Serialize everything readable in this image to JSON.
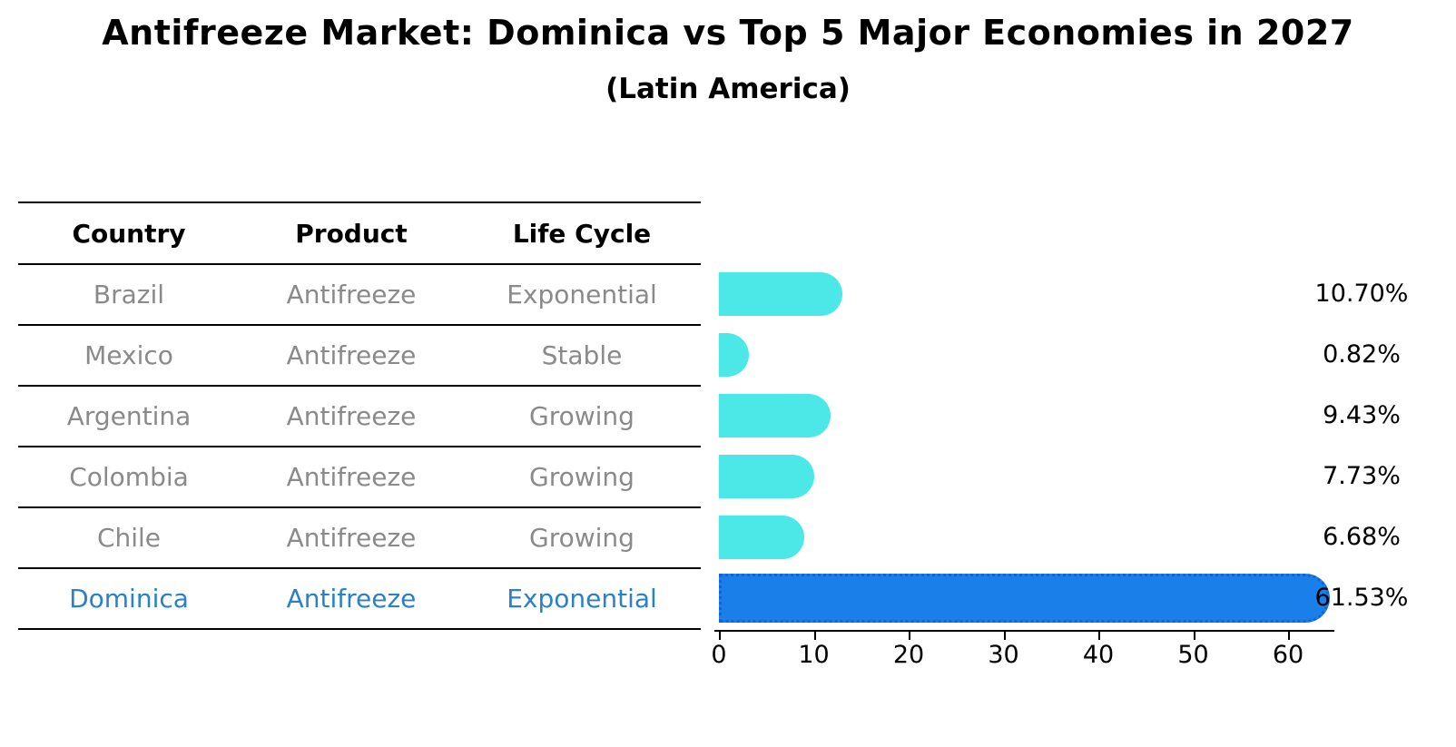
{
  "title": "Antifreeze Market: Dominica vs Top 5 Major Economies in 2027",
  "subtitle": "(Latin America)",
  "table": {
    "headers": [
      "Country",
      "Product",
      "Life Cycle"
    ],
    "rows": [
      {
        "country": "Brazil",
        "product": "Antifreeze",
        "life_cycle": "Exponential",
        "highlight": false
      },
      {
        "country": "Mexico",
        "product": "Antifreeze",
        "life_cycle": "Stable",
        "highlight": false
      },
      {
        "country": "Argentina",
        "product": "Antifreeze",
        "life_cycle": "Growing",
        "highlight": false
      },
      {
        "country": "Colombia",
        "product": "Antifreeze",
        "life_cycle": "Growing",
        "highlight": false
      },
      {
        "country": "Chile",
        "product": "Antifreeze",
        "life_cycle": "Growing",
        "highlight": false
      },
      {
        "country": "Dominica",
        "product": "Antifreeze",
        "life_cycle": "Exponential",
        "highlight": true
      }
    ]
  },
  "chart_data": {
    "type": "bar",
    "orientation": "horizontal",
    "title": "Antifreeze Market: Dominica vs Top 5 Major Economies in 2027",
    "subtitle": "(Latin America)",
    "categories": [
      "Brazil",
      "Mexico",
      "Argentina",
      "Colombia",
      "Chile",
      "Dominica"
    ],
    "values": [
      10.7,
      0.82,
      9.43,
      7.73,
      6.68,
      61.53
    ],
    "value_labels": [
      "10.70%",
      "0.82%",
      "9.43%",
      "7.73%",
      "6.68%",
      "61.53%"
    ],
    "highlight_index": 5,
    "xlabel": "",
    "ylabel": "",
    "xticks": [
      0,
      10,
      20,
      30,
      40,
      50,
      60
    ],
    "xlim": [
      0,
      64.5
    ],
    "grid": false,
    "legend": false,
    "bar_color": "#4ce7e7",
    "highlight_bar_color": "#1b7fea",
    "highlight_text_color": "#2a81ca",
    "row_text_color": "#8a8a8a"
  }
}
